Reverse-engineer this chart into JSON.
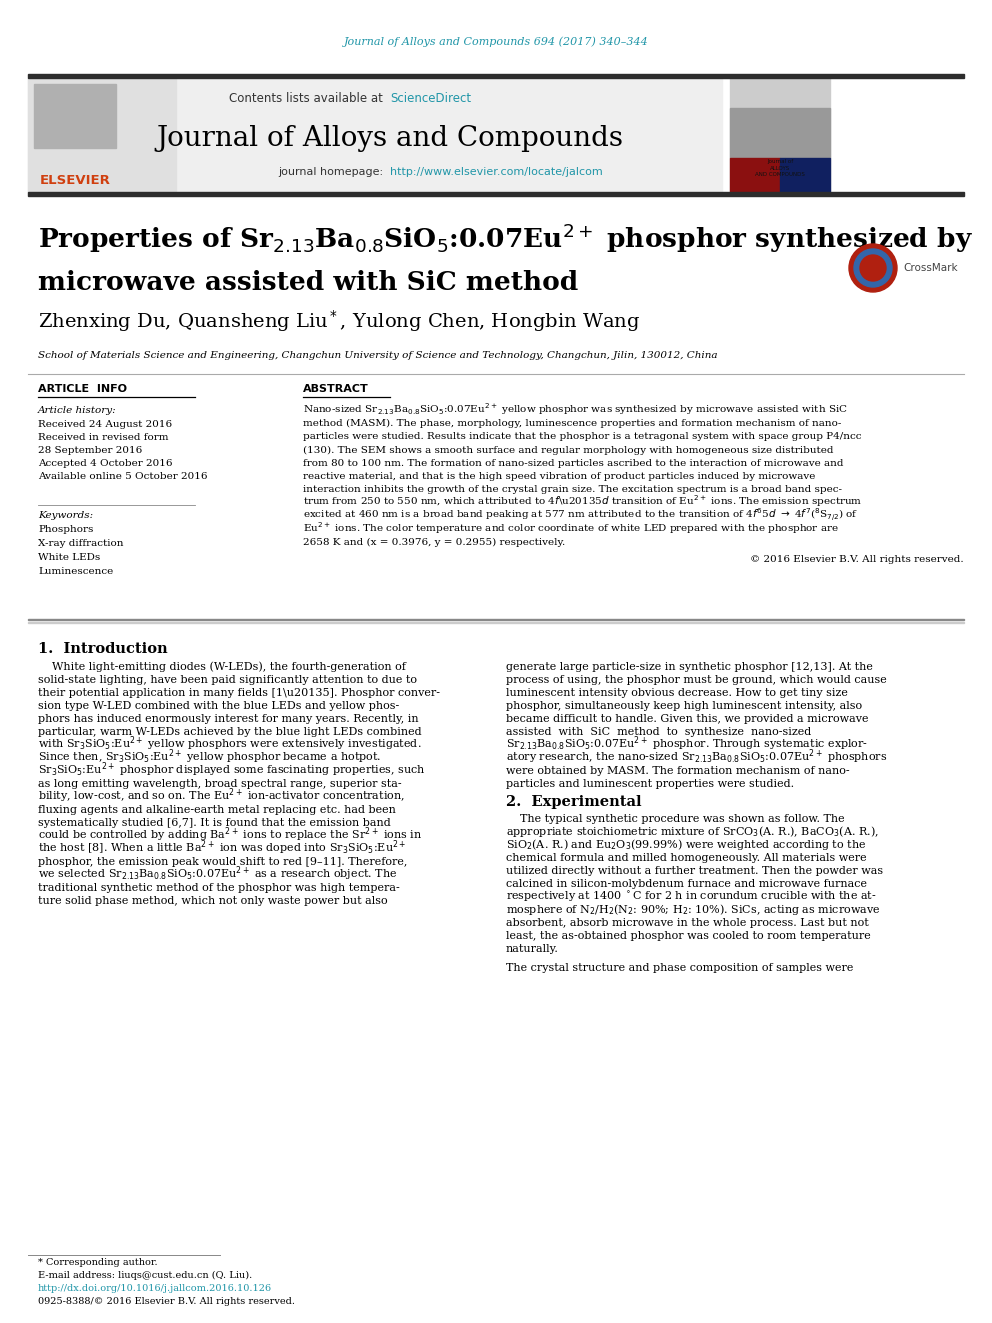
{
  "journal_ref": "Journal of Alloys and Compounds 694 (2017) 340–344",
  "journal_ref_color": "#2196a8",
  "sciencedirect_color": "#2196a8",
  "journal_name": "Journal of Alloys and Compounds",
  "journal_url": "http://www.elsevier.com/locate/jalcom",
  "journal_url_color": "#2196a8",
  "article_info_title": "ARTICLE  INFO",
  "abstract_title": "ABSTRACT",
  "article_history_label": "Article history:",
  "received_date": "Received 24 August 2016",
  "received_revised": "Received in revised form",
  "revised_date": "28 September 2016",
  "accepted_date": "Accepted 4 October 2016",
  "available_date": "Available online 5 October 2016",
  "keywords_label": "Keywords:",
  "keywords": [
    "Phosphors",
    "X-ray diffraction",
    "White LEDs",
    "Luminescence"
  ],
  "copyright_text": "© 2016 Elsevier B.V. All rights reserved.",
  "section1_title": "1.  Introduction",
  "section2_title": "2.  Experimental",
  "footnote_line1": "* Corresponding author.",
  "footnote_line2": "E-mail address: liuqs@cust.edu.cn (Q. Liu).",
  "footnote_url": "http://dx.doi.org/10.1016/j.jallcom.2016.10.126",
  "footnote_license": "0925-8388/© 2016 Elsevier B.V. All rights reserved.",
  "affiliation": "School of Materials Science and Engineering, Changchun University of Science and Technology, Changchun, Jilin, 130012, China",
  "bg_header": "#efefef",
  "bg_white": "#ffffff",
  "text_black": "#000000",
  "header_bar_color": "#2d2d2d",
  "teal_color": "#2196a8"
}
